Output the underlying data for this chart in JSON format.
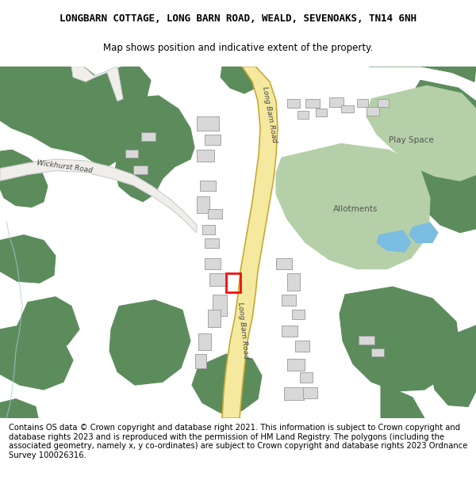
{
  "title_line1": "LONGBARN COTTAGE, LONG BARN ROAD, WEALD, SEVENOAKS, TN14 6NH",
  "title_line2": "Map shows position and indicative extent of the property.",
  "footer": "Contains OS data © Crown copyright and database right 2021. This information is subject to Crown copyright and database rights 2023 and is reproduced with the permission of HM Land Registry. The polygons (including the associated geometry, namely x, y co-ordinates) are subject to Crown copyright and database rights 2023 Ordnance Survey 100026316.",
  "bg_color": "#ffffff",
  "map_bg": "#f7f6f1",
  "road_fill": "#f5e9a0",
  "road_edge": "#c8a832",
  "green_dark": "#5c8c5c",
  "green_light": "#b5d0a8",
  "building_fill": "#d8d8d8",
  "building_edge": "#999999",
  "water_fill": "#7bbde0",
  "red_highlight": "#ee1111",
  "white_road": "#f0eeea",
  "white_road_edge": "#cccccc",
  "light_blue_path": "#cce0e8",
  "title_fontsize": 9.0,
  "subtitle_fontsize": 8.5,
  "footer_fontsize": 7.2,
  "map_label_fontsize": 7.0,
  "road_label_fontsize": 6.5
}
